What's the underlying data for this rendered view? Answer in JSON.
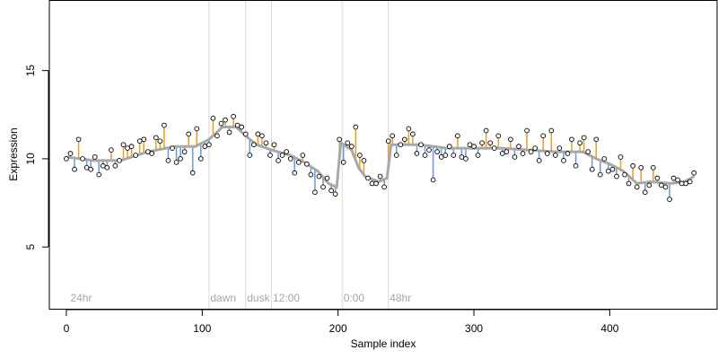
{
  "chart_data": {
    "type": "scatter",
    "title": "",
    "xlabel": "Sample index",
    "ylabel": "Expression",
    "xlim": [
      -12.5,
      479
    ],
    "ylim": [
      1.5,
      19
    ],
    "x_ticks": [
      0,
      100,
      200,
      300,
      400
    ],
    "y_ticks": [
      5,
      10,
      15
    ],
    "grid": false,
    "colors": {
      "fit_line": "#a8a8a8",
      "residual_above": "#e8a32e",
      "residual_below": "#6f9fd8",
      "vline": "#d9d9d9",
      "annotation": "#a6a6a6",
      "point_fill": "#ffffff",
      "point_stroke": "#000000"
    },
    "annotations": [
      {
        "label": "24hr",
        "x": 3,
        "y": 1.9
      },
      {
        "label": "dawn",
        "x": 106,
        "y": 1.9
      },
      {
        "label": "dusk",
        "x": 133,
        "y": 1.9
      },
      {
        "label": "12:00",
        "x": 152,
        "y": 1.9
      },
      {
        "label": "0:00",
        "x": 204,
        "y": 1.9
      },
      {
        "label": "48hr",
        "x": 238,
        "y": 1.9
      }
    ],
    "vlines": [
      105,
      132,
      151,
      203,
      237
    ],
    "fit_knots": [
      [
        0,
        10.1
      ],
      [
        20,
        9.9
      ],
      [
        40,
        9.9
      ],
      [
        60,
        10.4
      ],
      [
        80,
        10.7
      ],
      [
        95,
        10.7
      ],
      [
        105,
        11.1
      ],
      [
        115,
        11.8
      ],
      [
        125,
        11.8
      ],
      [
        132,
        11.3
      ],
      [
        140,
        10.8
      ],
      [
        151,
        10.5
      ],
      [
        165,
        10.2
      ],
      [
        175,
        9.8
      ],
      [
        185,
        9.3
      ],
      [
        193,
        8.6
      ],
      [
        199,
        8.4
      ],
      [
        202,
        10.9
      ],
      [
        210,
        10.5
      ],
      [
        215,
        9.5
      ],
      [
        220,
        9.0
      ],
      [
        230,
        8.7
      ],
      [
        236,
        8.9
      ],
      [
        239,
        10.8
      ],
      [
        260,
        10.8
      ],
      [
        280,
        10.6
      ],
      [
        300,
        10.6
      ],
      [
        320,
        10.6
      ],
      [
        340,
        10.5
      ],
      [
        360,
        10.4
      ],
      [
        380,
        10.4
      ],
      [
        390,
        10.0
      ],
      [
        400,
        9.7
      ],
      [
        410,
        9.3
      ],
      [
        420,
        8.6
      ],
      [
        430,
        8.7
      ],
      [
        445,
        8.6
      ],
      [
        455,
        8.7
      ],
      [
        462,
        9.0
      ]
    ],
    "series": [
      {
        "x": [
          0,
          3,
          6,
          9,
          12,
          15,
          18,
          21,
          24,
          27,
          30,
          33,
          36,
          39,
          42,
          45,
          48,
          51,
          54,
          57,
          60,
          63,
          66,
          69,
          72,
          75,
          78,
          81,
          84,
          87,
          90,
          93,
          96,
          99,
          102,
          105,
          108,
          111,
          114,
          117,
          120,
          123,
          126,
          129,
          132,
          135,
          138,
          141,
          144,
          147,
          150,
          153,
          156,
          159,
          162,
          165,
          168,
          171,
          174,
          177,
          180,
          183,
          186,
          189,
          192,
          195,
          198,
          201,
          204,
          207,
          210,
          213,
          216,
          219,
          222,
          225,
          228,
          231,
          234,
          237,
          240,
          243,
          246,
          249,
          252,
          255,
          258,
          261,
          264,
          267,
          270,
          273,
          276,
          279,
          282,
          285,
          288,
          291,
          294,
          297,
          300,
          303,
          306,
          309,
          312,
          315,
          318,
          321,
          324,
          327,
          330,
          333,
          336,
          339,
          342,
          345,
          348,
          351,
          354,
          357,
          360,
          363,
          366,
          369,
          372,
          375,
          378,
          381,
          384,
          387,
          390,
          393,
          396,
          399,
          402,
          405,
          408,
          411,
          414,
          417,
          420,
          423,
          426,
          429,
          432,
          435,
          438,
          441,
          444,
          447,
          450,
          453,
          456,
          459,
          462
        ],
        "y": [
          10.0,
          10.3,
          9.4,
          11.1,
          10.0,
          9.5,
          9.4,
          10.1,
          9.1,
          9.6,
          9.5,
          10.5,
          9.6,
          9.9,
          10.8,
          10.6,
          10.7,
          10.2,
          11.0,
          11.1,
          10.4,
          10.3,
          11.2,
          11.0,
          11.9,
          9.9,
          10.6,
          9.8,
          10.0,
          10.4,
          11.4,
          9.2,
          11.7,
          10.0,
          10.7,
          10.8,
          12.3,
          11.3,
          12.0,
          12.2,
          11.5,
          12.4,
          11.9,
          11.8,
          11.4,
          10.2,
          10.8,
          11.4,
          11.3,
          10.9,
          10.2,
          10.8,
          9.9,
          10.2,
          10.4,
          10.0,
          9.2,
          9.8,
          10.2,
          9.7,
          9.1,
          8.1,
          9.0,
          8.4,
          8.9,
          8.2,
          8.0,
          11.1,
          9.8,
          10.9,
          10.7,
          11.8,
          10.2,
          9.9,
          8.9,
          8.6,
          8.6,
          9.0,
          8.4,
          11.0,
          11.3,
          10.2,
          10.8,
          11.1,
          11.7,
          11.4,
          10.3,
          10.8,
          10.2,
          10.5,
          8.8,
          10.4,
          10.1,
          10.2,
          10.7,
          10.2,
          11.3,
          10.1,
          10.0,
          10.8,
          10.7,
          10.2,
          10.9,
          11.6,
          10.9,
          10.6,
          11.3,
          10.3,
          10.4,
          11.1,
          10.1,
          10.7,
          10.3,
          11.6,
          10.4,
          10.6,
          9.9,
          11.3,
          10.3,
          11.6,
          10.2,
          10.6,
          9.9,
          10.3,
          11.1,
          9.6,
          10.9,
          11.2,
          10.4,
          9.4,
          11.1,
          9.1,
          10.0,
          9.3,
          9.4,
          9.0,
          10.1,
          9.1,
          8.6,
          9.6,
          8.4,
          9.5,
          8.1,
          8.5,
          9.5,
          8.9,
          8.5,
          8.4,
          7.7,
          8.9,
          8.8,
          8.6,
          8.6,
          8.7,
          9.2
        ]
      }
    ]
  }
}
